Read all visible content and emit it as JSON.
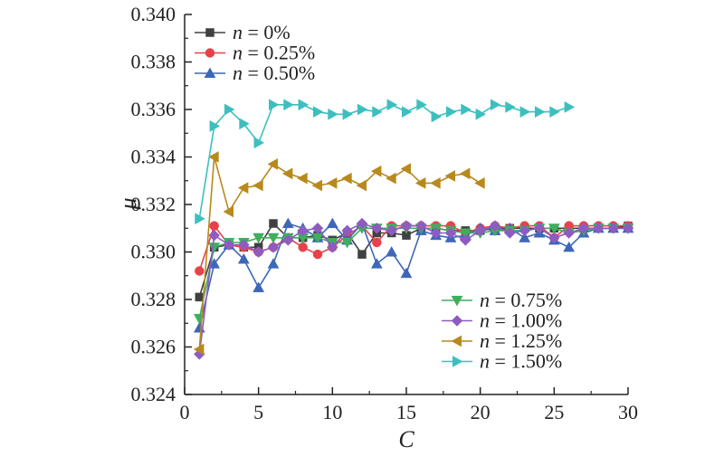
{
  "chart_data": {
    "type": "line",
    "xlabel": "C",
    "ylabel": "μ",
    "xlim": [
      0,
      30
    ],
    "ylim": [
      0.324,
      0.34
    ],
    "xticks": [
      "0",
      "5",
      "10",
      "15",
      "20",
      "25",
      "30"
    ],
    "yticks": [
      "0.324",
      "0.326",
      "0.328",
      "0.330",
      "0.332",
      "0.334",
      "0.336",
      "0.338",
      "0.340"
    ],
    "grid": false,
    "legend_groups": [
      "top-left",
      "bottom-right"
    ],
    "series": [
      {
        "name": "n = 0%",
        "label_var": "n",
        "label_rest": " = 0%",
        "color": "#404040",
        "marker": "square",
        "legend_group": 0,
        "x": [
          1,
          2,
          3,
          4,
          5,
          6,
          7,
          8,
          9,
          10,
          11,
          12,
          13,
          14,
          15,
          16,
          17,
          18,
          19,
          20,
          21,
          22,
          23,
          24,
          25,
          26,
          27,
          28,
          29,
          30
        ],
        "y": [
          0.3281,
          0.3302,
          0.3303,
          0.3302,
          0.3302,
          0.3312,
          0.3306,
          0.3306,
          0.3307,
          0.3305,
          0.3308,
          0.3299,
          0.3308,
          0.3308,
          0.3307,
          0.331,
          0.331,
          0.3309,
          0.3309,
          0.3309,
          0.331,
          0.331,
          0.331,
          0.331,
          0.331,
          0.331,
          0.331,
          0.331,
          0.331,
          0.3311
        ]
      },
      {
        "name": "n = 0.25%",
        "label_var": "n",
        "label_rest": " = 0.25%",
        "color": "#e8414a",
        "marker": "circle",
        "legend_group": 0,
        "x": [
          1,
          2,
          3,
          4,
          5,
          6,
          7,
          8,
          9,
          10,
          11,
          12,
          13,
          14,
          15,
          16,
          17,
          18,
          19,
          20,
          21,
          22,
          23,
          24,
          25,
          26,
          27,
          28,
          29,
          30
        ],
        "y": [
          0.3292,
          0.3311,
          0.3303,
          0.3302,
          0.33,
          0.3302,
          0.3306,
          0.3302,
          0.3299,
          0.3302,
          0.3307,
          0.3311,
          0.3304,
          0.3311,
          0.3311,
          0.3311,
          0.3311,
          0.3311,
          0.3308,
          0.331,
          0.3311,
          0.331,
          0.3311,
          0.3311,
          0.3306,
          0.3311,
          0.3311,
          0.3311,
          0.3311,
          0.3311
        ]
      },
      {
        "name": "n = 0.50%",
        "label_var": "n",
        "label_rest": " = 0.50%",
        "color": "#3d67b8",
        "marker": "triangle-up",
        "legend_group": 0,
        "x": [
          1,
          2,
          3,
          4,
          5,
          6,
          7,
          8,
          9,
          10,
          11,
          12,
          13,
          14,
          15,
          16,
          17,
          18,
          19,
          20,
          21,
          22,
          23,
          24,
          25,
          26,
          27,
          28,
          29,
          30
        ],
        "y": [
          0.3268,
          0.3295,
          0.3303,
          0.3297,
          0.3285,
          0.3295,
          0.3312,
          0.331,
          0.3306,
          0.3312,
          0.3305,
          0.3312,
          0.3295,
          0.33,
          0.3291,
          0.3309,
          0.3307,
          0.3306,
          0.3307,
          0.331,
          0.3309,
          0.331,
          0.3306,
          0.3308,
          0.3305,
          0.3302,
          0.3308,
          0.331,
          0.331,
          0.331
        ]
      },
      {
        "name": "n = 0.75%",
        "label_var": "n",
        "label_rest": " = 0.75%",
        "color": "#3fae5e",
        "marker": "triangle-down",
        "legend_group": 1,
        "x": [
          1,
          2,
          3,
          4,
          5,
          6,
          7,
          8,
          9,
          10,
          11,
          12,
          13,
          14,
          15,
          16,
          17,
          18,
          19,
          20,
          21,
          22,
          23,
          24,
          25,
          26,
          27,
          28,
          29,
          30
        ],
        "y": [
          0.3272,
          0.3302,
          0.3304,
          0.3304,
          0.3306,
          0.3306,
          0.3306,
          0.3306,
          0.3306,
          0.3304,
          0.3304,
          0.331,
          0.331,
          0.331,
          0.331,
          0.331,
          0.331,
          0.3309,
          0.3308,
          0.3308,
          0.3309,
          0.3309,
          0.3309,
          0.331,
          0.331,
          0.3308,
          0.3309,
          0.331,
          0.331,
          0.331
        ]
      },
      {
        "name": "n = 1.00%",
        "label_var": "n",
        "label_rest": " = 1.00%",
        "color": "#8e5cc0",
        "marker": "diamond",
        "legend_group": 1,
        "x": [
          1,
          2,
          3,
          4,
          5,
          6,
          7,
          8,
          9,
          10,
          11,
          12,
          13,
          14,
          15,
          16,
          17,
          18,
          19,
          20,
          21,
          22,
          23,
          24,
          25,
          26,
          27,
          28,
          29,
          30
        ],
        "y": [
          0.3257,
          0.3307,
          0.3303,
          0.3303,
          0.33,
          0.3302,
          0.3305,
          0.3309,
          0.331,
          0.3302,
          0.3309,
          0.3312,
          0.331,
          0.3309,
          0.3311,
          0.3311,
          0.3308,
          0.3308,
          0.3305,
          0.3309,
          0.3311,
          0.3308,
          0.3309,
          0.331,
          0.3306,
          0.3308,
          0.331,
          0.331,
          0.331,
          0.331
        ]
      },
      {
        "name": "n = 1.25%",
        "label_var": "n",
        "label_rest": " = 1.25%",
        "color": "#b8891c",
        "marker": "triangle-left",
        "legend_group": 1,
        "x": [
          1,
          2,
          3,
          4,
          5,
          6,
          7,
          8,
          9,
          10,
          11,
          12,
          13,
          14,
          15,
          16,
          17,
          18,
          19,
          20
        ],
        "y": [
          0.3259,
          0.334,
          0.3317,
          0.3327,
          0.3328,
          0.3337,
          0.3333,
          0.3331,
          0.3328,
          0.3329,
          0.3331,
          0.3328,
          0.3334,
          0.3331,
          0.3335,
          0.3329,
          0.3329,
          0.3332,
          0.3333,
          0.3329
        ]
      },
      {
        "name": "n = 1.50%",
        "label_var": "n",
        "label_rest": " = 1.50%",
        "color": "#3dbfbf",
        "marker": "triangle-right",
        "legend_group": 1,
        "x": [
          1,
          2,
          3,
          4,
          5,
          6,
          7,
          8,
          9,
          10,
          11,
          12,
          13,
          14,
          15,
          16,
          17,
          18,
          19,
          20,
          21,
          22,
          23,
          24,
          25,
          26
        ],
        "y": [
          0.3314,
          0.3353,
          0.336,
          0.3354,
          0.3346,
          0.3362,
          0.3362,
          0.3362,
          0.3359,
          0.3358,
          0.3358,
          0.336,
          0.3359,
          0.3362,
          0.3359,
          0.3362,
          0.3357,
          0.3359,
          0.336,
          0.3358,
          0.3362,
          0.3361,
          0.3359,
          0.3359,
          0.3359,
          0.3361
        ]
      }
    ]
  }
}
